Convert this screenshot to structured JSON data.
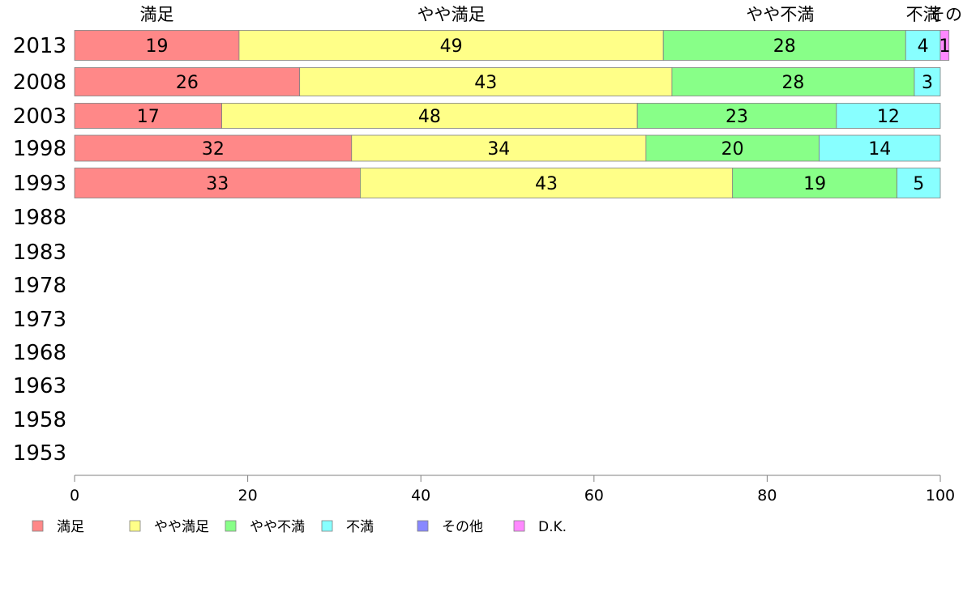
{
  "chart_data": {
    "type": "bar",
    "orientation": "horizontal",
    "stacked": true,
    "categories": [
      "2013",
      "2008",
      "2003",
      "1998",
      "1993",
      "1988",
      "1983",
      "1978",
      "1973",
      "1968",
      "1963",
      "1958",
      "1953"
    ],
    "top_labels": [
      "満足",
      "やや満足",
      "やや不満",
      "不満",
      "その..."
    ],
    "series": [
      {
        "name": "満足",
        "color": "#ff8888",
        "values": [
          19,
          26,
          17,
          32,
          33,
          null,
          null,
          null,
          null,
          null,
          null,
          null,
          null
        ]
      },
      {
        "name": "やや満足",
        "color": "#ffff88",
        "values": [
          49,
          43,
          48,
          34,
          43,
          null,
          null,
          null,
          null,
          null,
          null,
          null,
          null
        ]
      },
      {
        "name": "やや不満",
        "color": "#88ff88",
        "values": [
          28,
          28,
          23,
          20,
          19,
          null,
          null,
          null,
          null,
          null,
          null,
          null,
          null
        ]
      },
      {
        "name": "不満",
        "color": "#88ffff",
        "values": [
          4,
          3,
          12,
          14,
          5,
          null,
          null,
          null,
          null,
          null,
          null,
          null,
          null
        ]
      },
      {
        "name": "その他",
        "color": "#8888ff",
        "values": [
          0,
          0,
          0,
          0,
          0,
          null,
          null,
          null,
          null,
          null,
          null,
          null,
          null
        ]
      },
      {
        "name": "D.K.",
        "color": "#ff88ff",
        "values": [
          1,
          0,
          0,
          0,
          0,
          null,
          null,
          null,
          null,
          null,
          null,
          null,
          null
        ]
      }
    ],
    "xlim": [
      0,
      100
    ],
    "xticks": [
      0,
      20,
      40,
      60,
      80,
      100
    ],
    "legend_position": "bottom",
    "grid": false
  }
}
